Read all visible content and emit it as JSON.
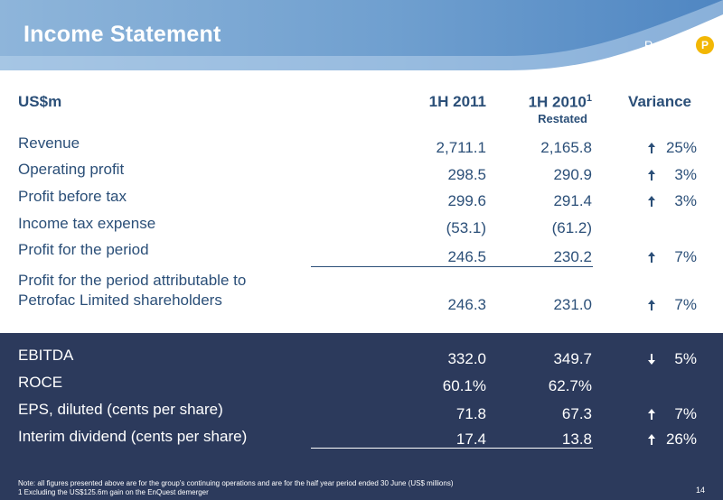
{
  "header": {
    "title": "Income Statement",
    "brand": "Petrofac",
    "logo_letter": "P"
  },
  "table": {
    "col_label": "US$m",
    "col_1h2011": "1H 2011",
    "col_1h2010": "1H 2010",
    "col_1h2010_sup": "1",
    "col_1h2010_sub": "Restated",
    "col_variance": "Variance",
    "rows": [
      {
        "label": "Revenue",
        "v2011": "2,711.1",
        "v2010": "2,165.8",
        "variance": "25%",
        "dir": "up"
      },
      {
        "label": "Operating profit",
        "v2011": "298.5",
        "v2010": "290.9",
        "variance": "3%",
        "dir": "up"
      },
      {
        "label": "Profit before tax",
        "v2011": "299.6",
        "v2010": "291.4",
        "variance": "3%",
        "dir": "up"
      },
      {
        "label": "Income tax expense",
        "v2011": "(53.1)",
        "v2010": "(61.2)",
        "variance": "",
        "dir": ""
      },
      {
        "label": "Profit for the period",
        "v2011": "246.5",
        "v2010": "230.2",
        "variance": "7%",
        "dir": "up"
      },
      {
        "label_line1": "Profit for the period attributable to",
        "label_line2": "Petrofac Limited shareholders",
        "v2011": "246.3",
        "v2010": "231.0",
        "variance": "7%",
        "dir": "up"
      }
    ],
    "dark_rows": [
      {
        "label": "EBITDA",
        "v2011": "332.0",
        "v2010": "349.7",
        "variance": "5%",
        "dir": "down"
      },
      {
        "label": "ROCE",
        "v2011": "60.1%",
        "v2010": "62.7%",
        "variance": "",
        "dir": ""
      },
      {
        "label": "EPS, diluted (cents per share)",
        "v2011": "71.8",
        "v2010": "67.3",
        "variance": "7%",
        "dir": "up"
      },
      {
        "label": "Interim dividend (cents per share)",
        "v2011": "17.4",
        "v2010": "13.8",
        "variance": "26%",
        "dir": "up"
      }
    ]
  },
  "footer": {
    "note1": "Note: all figures presented above are for the group’s continuing operations and are for the half year period ended 30 June (US$ millions)",
    "note2": "1 Excluding the US$125.6m gain on the EnQuest demerger",
    "page_number": "14"
  },
  "colors": {
    "header_blue": "#6d9ccc",
    "text_blue": "#2b4f78",
    "dark_band": "#2c3a5c",
    "logo_gold": "#f2b705"
  }
}
